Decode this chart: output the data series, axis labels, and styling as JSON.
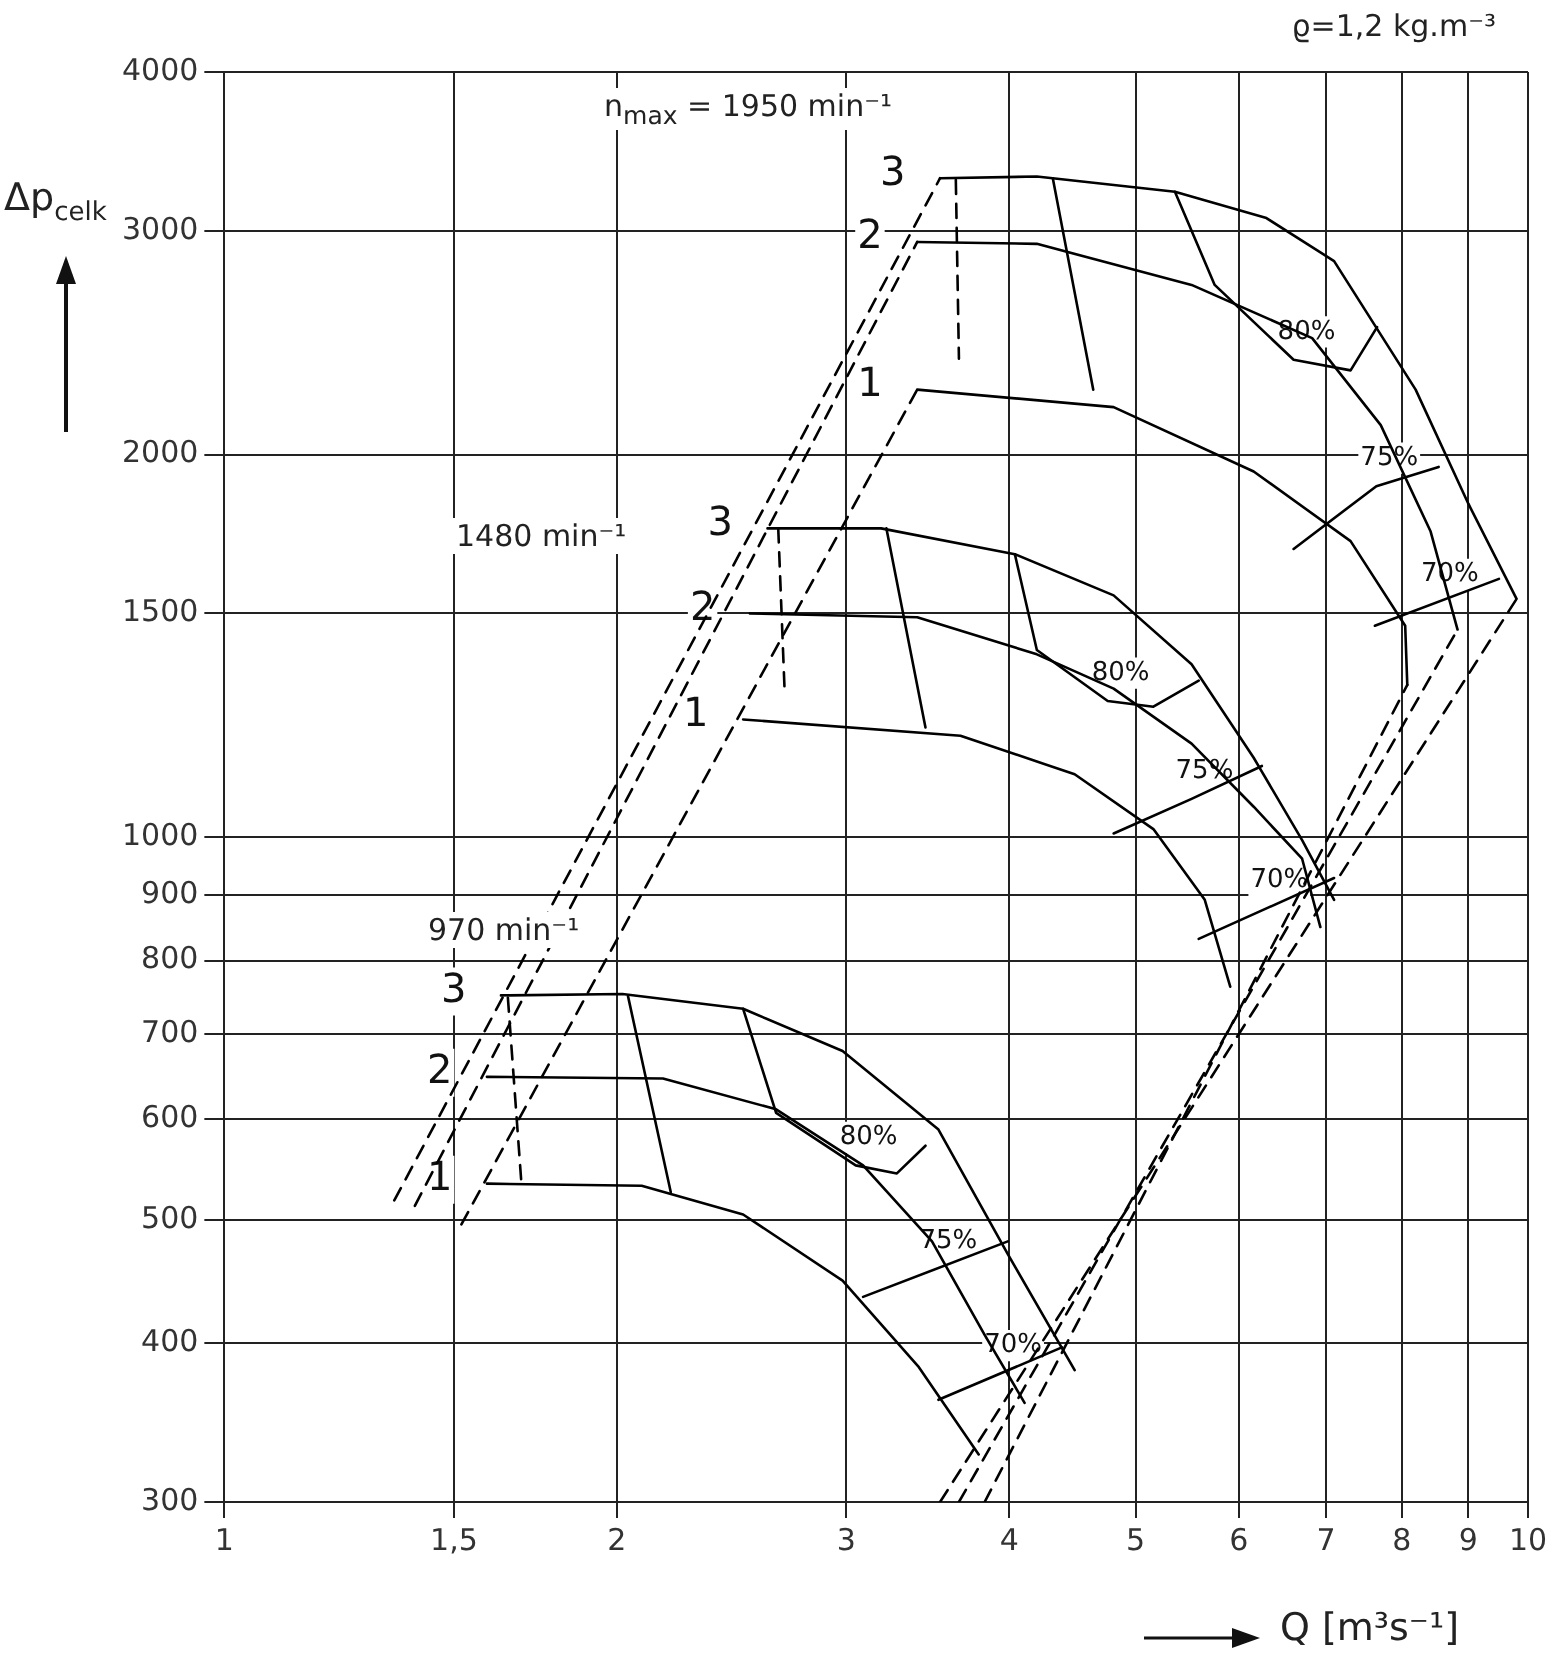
{
  "chart_data": {
    "type": "line",
    "xlabel": "Q [m³s⁻¹]",
    "ylabel": "Δp$_{celk}$",
    "log": "xy",
    "grid": true,
    "marker": "none",
    "xlim": [
      1,
      10
    ],
    "ylim": [
      300,
      4000
    ],
    "xticks": [
      1,
      {
        "value": 1.5,
        "label": "1,5"
      },
      2,
      3,
      4,
      5,
      6,
      7,
      8,
      9,
      10
    ],
    "yticks": [
      300,
      400,
      500,
      600,
      700,
      800,
      900,
      1000,
      1500,
      2000,
      3000,
      4000
    ],
    "series": [
      {
        "name": "3",
        "color": "#000000",
        "x": [
          3.54,
          4.2,
          5.36,
          6.3,
          7.1,
          8.2,
          9.0,
          9.8
        ],
        "values": [
          3300,
          3310,
          3220,
          3070,
          2840,
          2250,
          1830,
          1540
        ]
      },
      {
        "name": "2",
        "color": "#000000",
        "x": [
          3.4,
          4.2,
          5.52,
          6.83,
          7.71,
          8.42,
          8.83
        ],
        "values": [
          2940,
          2930,
          2720,
          2470,
          2110,
          1740,
          1457
        ]
      },
      {
        "name": "1",
        "color": "#000000",
        "x": [
          3.4,
          4.81,
          6.16,
          7.31,
          8.05,
          8.08
        ],
        "values": [
          2250,
          2180,
          1940,
          1710,
          1467,
          1318
        ]
      },
      {
        "name": "3",
        "color": "#000000",
        "x": [
          2.61,
          3.19,
          4.04,
          4.81,
          5.52,
          6.16,
          6.71,
          7.1
        ],
        "values": [
          1750,
          1750,
          1670,
          1550,
          1368,
          1155,
          995,
          893
        ]
      },
      {
        "name": "2",
        "color": "#000000",
        "x": [
          2.53,
          3.4,
          4.2,
          4.81,
          5.52,
          6.16,
          6.71,
          6.93
        ],
        "values": [
          1500,
          1490,
          1393,
          1309,
          1185,
          1057,
          962,
          850
        ]
      },
      {
        "name": "1",
        "color": "#000000",
        "x": [
          2.5,
          3.67,
          4.49,
          5.16,
          5.65,
          5.91
        ],
        "values": [
          1238,
          1202,
          1121,
          1015,
          893,
          763
        ]
      },
      {
        "name": "3",
        "color": "#000000",
        "x": [
          1.63,
          2.02,
          2.5,
          2.98,
          3.53,
          3.99,
          4.49
        ],
        "values": [
          751,
          753,
          733,
          679,
          589,
          470,
          381
        ]
      },
      {
        "name": "2",
        "color": "#000000",
        "x": [
          1.59,
          2.17,
          2.65,
          3.09,
          3.49,
          3.83,
          4.11
        ],
        "values": [
          648,
          646,
          611,
          552,
          481,
          406,
          359
        ]
      },
      {
        "name": "1",
        "color": "#000000",
        "x": [
          1.59,
          2.09,
          2.5,
          2.98,
          3.41,
          3.79
        ],
        "values": [
          534,
          532,
          505,
          448,
          383,
          327
        ]
      },
      {
        "name": "80%",
        "color": "#000000",
        "x": [
          5.36,
          5.75,
          6.61,
          7.31,
          7.66
        ],
        "values": [
          3220,
          2720,
          2375,
          2330,
          2520
        ]
      },
      {
        "name": "75%",
        "color": "#000000",
        "x": [
          8.54,
          7.65,
          6.61
        ],
        "values": [
          1956,
          1889,
          1686
        ]
      },
      {
        "name": "70%",
        "color": "#000000",
        "x": [
          9.5,
          7.63
        ],
        "values": [
          1597,
          1467
        ]
      },
      {
        "name": "80%",
        "color": "#000000",
        "x": [
          4.04,
          4.2,
          4.76,
          5.16,
          5.59
        ],
        "values": [
          1670,
          1404,
          1280,
          1267,
          1328
        ]
      },
      {
        "name": "75%",
        "color": "#000000",
        "x": [
          6.25,
          5.52,
          4.81
        ],
        "values": [
          1138,
          1072,
          1007
        ]
      },
      {
        "name": "70%",
        "color": "#000000",
        "x": [
          7.1,
          5.59
        ],
        "values": [
          929,
          832
        ]
      },
      {
        "name": "80%",
        "color": "#000000",
        "x": [
          2.5,
          2.65,
          3.05,
          3.28,
          3.45
        ],
        "values": [
          733,
          607,
          552,
          544,
          572
        ]
      },
      {
        "name": "75%",
        "color": "#000000",
        "x": [
          3.99,
          3.09
        ],
        "values": [
          481,
          435
        ]
      },
      {
        "name": "70%",
        "color": "#000000",
        "x": [
          4.39,
          3.53
        ],
        "values": [
          397,
          361
        ]
      },
      {
        "color": "#000000",
        "x": [
          4.32,
          4.64
        ],
        "values": [
          3300,
          2250
        ]
      },
      {
        "color": "#000000",
        "x": [
          3.22,
          3.45
        ],
        "values": [
          1750,
          1220
        ]
      },
      {
        "color": "#000000",
        "x": [
          2.04,
          2.2
        ],
        "values": [
          750,
          526
        ]
      },
      {
        "color": "#000000",
        "line_style": "dashed",
        "x": [
          3.64,
          3.66
        ],
        "values": [
          3290,
          2380
        ]
      },
      {
        "color": "#000000",
        "line_style": "dashed",
        "x": [
          2.66,
          2.69
        ],
        "values": [
          1750,
          1305
        ]
      },
      {
        "color": "#000000",
        "line_style": "dashed",
        "x": [
          1.65,
          1.69
        ],
        "values": [
          748,
          534
        ]
      },
      {
        "color": "#000000",
        "line_style": "dashed",
        "x": [
          1.35,
          3.54
        ],
        "values": [
          518,
          3300
        ]
      },
      {
        "color": "#000000",
        "line_style": "dashed",
        "x": [
          1.4,
          3.4
        ],
        "values": [
          513,
          2940
        ]
      },
      {
        "color": "#000000",
        "line_style": "dashed",
        "x": [
          1.52,
          3.4
        ],
        "values": [
          496,
          2250
        ]
      },
      {
        "color": "#000000",
        "line_style": "dashed",
        "x": [
          3.54,
          9.8
        ],
        "values": [
          300,
          1540
        ]
      },
      {
        "color": "#000000",
        "line_style": "dashed",
        "x": [
          3.66,
          8.83
        ],
        "values": [
          300,
          1457
        ]
      },
      {
        "color": "#000000",
        "line_style": "dashed",
        "x": [
          3.83,
          8.08
        ],
        "values": [
          300,
          1318
        ]
      }
    ],
    "annotations": [
      "ϱ=1,2 kg.m⁻³",
      "n$_{max}$ = 1950 min⁻¹",
      "1480 min⁻¹",
      "970 min⁻¹"
    ]
  }
}
